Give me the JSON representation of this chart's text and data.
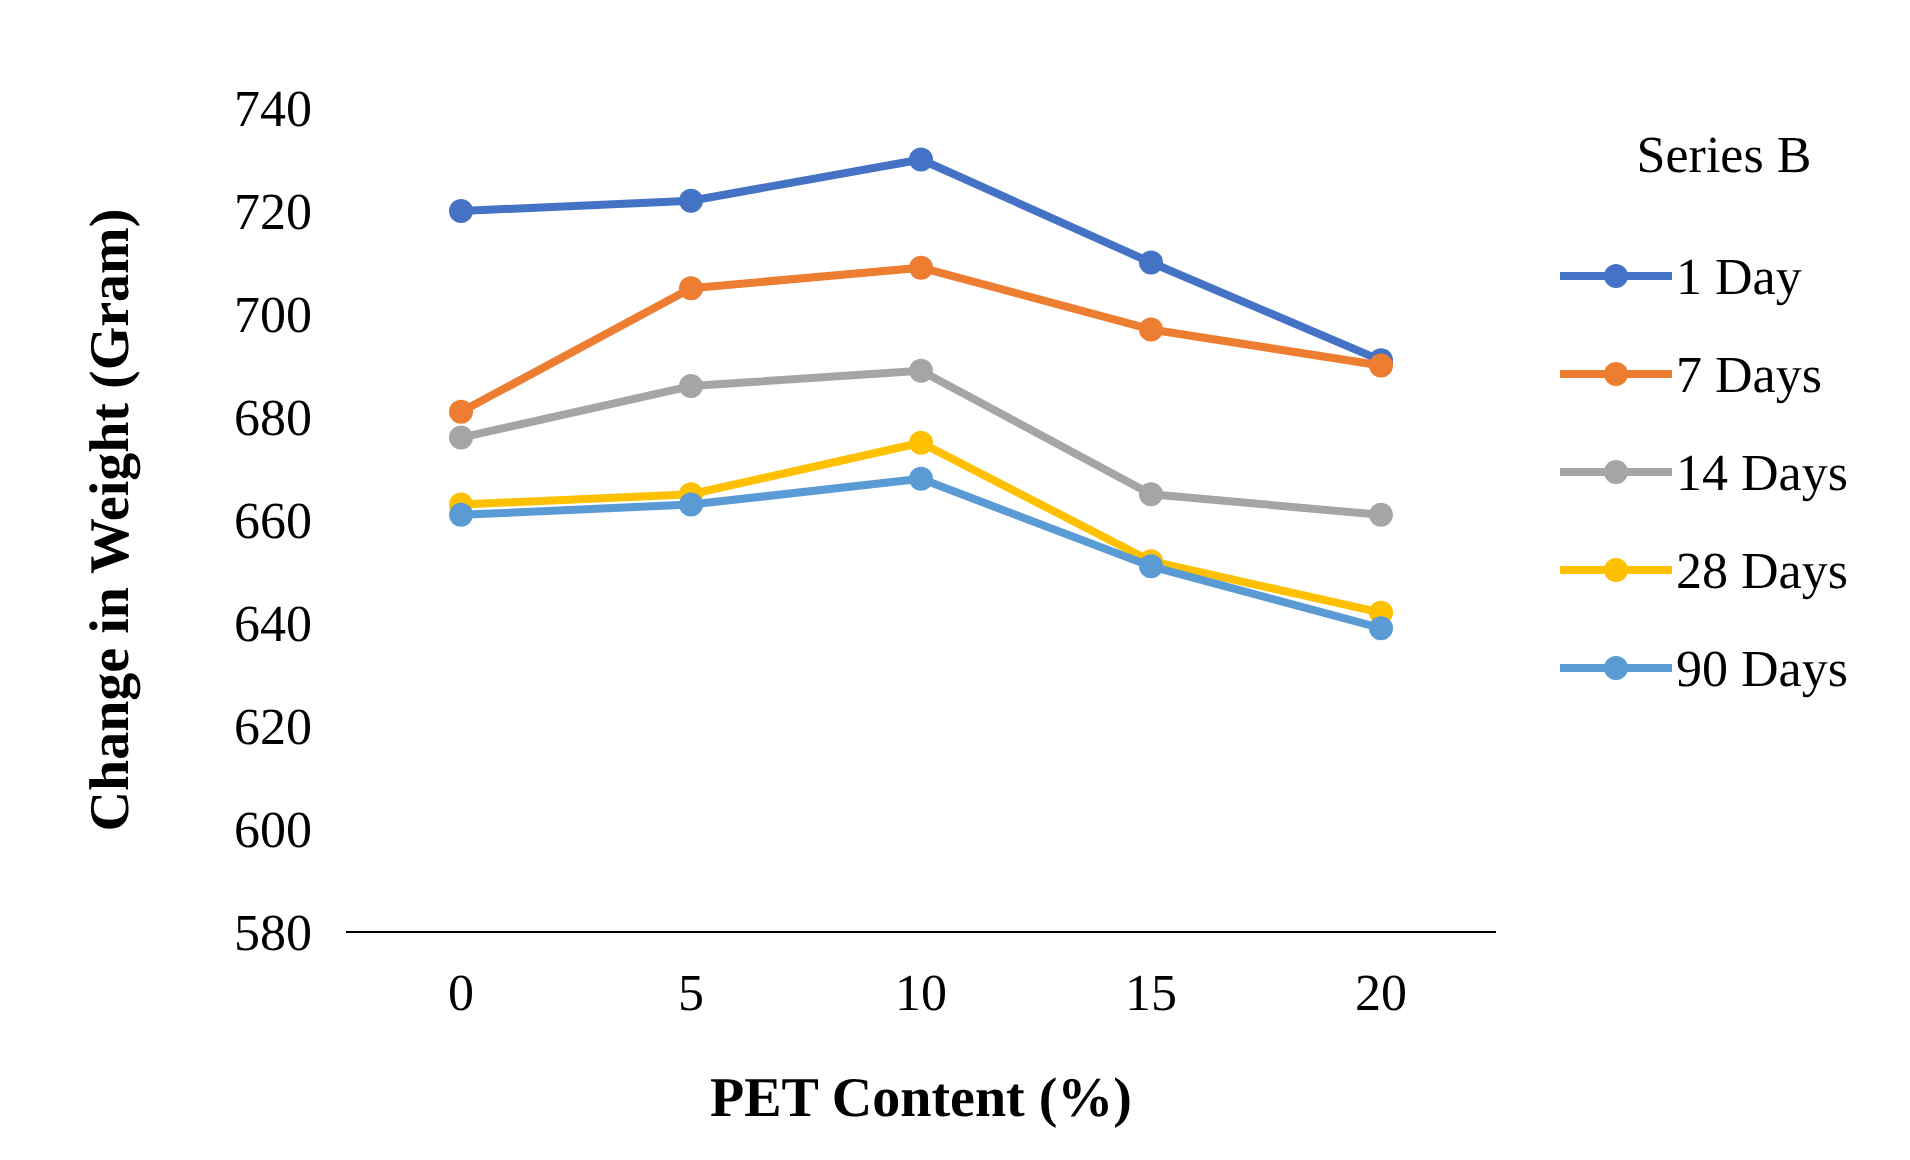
{
  "chart_data": {
    "type": "line",
    "xlabel": "PET Content (%)",
    "ylabel": "Change in Weight (Gram)",
    "legend_title": "Series B",
    "categories": [
      "0",
      "5",
      "10",
      "15",
      "20"
    ],
    "ylim": [
      580,
      740
    ],
    "yticks": [
      580,
      600,
      620,
      640,
      660,
      680,
      700,
      720,
      740
    ],
    "grid": false,
    "legend": "right",
    "marker": "circle",
    "line_style": "solid",
    "series": [
      {
        "name": "1 Day",
        "color": "#4472c4",
        "values": [
          720,
          722,
          730,
          710,
          691
        ]
      },
      {
        "name": "7 Days",
        "color": "#ed7d31",
        "values": [
          681,
          705,
          709,
          697,
          690
        ]
      },
      {
        "name": "14 Days",
        "color": "#a5a5a5",
        "values": [
          676,
          686,
          689,
          665,
          661
        ]
      },
      {
        "name": "28 Days",
        "color": "#ffc000",
        "values": [
          663,
          665,
          675,
          652,
          642
        ]
      },
      {
        "name": "90 Days",
        "color": "#5b9bd5",
        "values": [
          661,
          663,
          668,
          651,
          639
        ]
      }
    ]
  }
}
